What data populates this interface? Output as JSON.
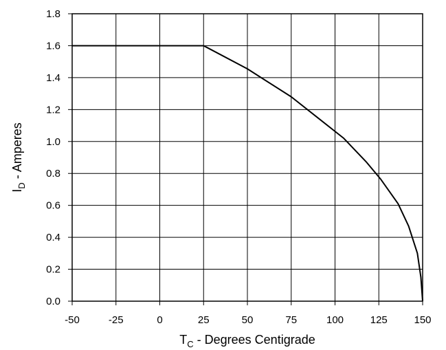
{
  "chart_data": {
    "type": "line",
    "title": "",
    "xlabel": {
      "main": "T",
      "sub": "C",
      "rest": " - Degrees Centigrade"
    },
    "ylabel": {
      "main": "I",
      "sub": "D",
      "rest": " - Amperes"
    },
    "xlim": [
      -50,
      150
    ],
    "ylim": [
      0.0,
      1.8
    ],
    "xticks": [
      -50,
      -25,
      0,
      25,
      50,
      75,
      100,
      125,
      150
    ],
    "xtick_labels": [
      "-50",
      "-25",
      "0",
      "25",
      "50",
      "75",
      "100",
      "125",
      "150"
    ],
    "yticks": [
      0.0,
      0.2,
      0.4,
      0.6,
      0.8,
      1.0,
      1.2,
      1.4,
      1.6,
      1.8
    ],
    "ytick_labels": [
      "0.0",
      "0.2",
      "0.4",
      "0.6",
      "0.8",
      "1.0",
      "1.2",
      "1.4",
      "1.6",
      "1.8"
    ],
    "grid": true,
    "legend": "none",
    "series": [
      {
        "color": "#000000",
        "x": [
          -50,
          25,
          50,
          75,
          90,
          105,
          118,
          126,
          136,
          142,
          147,
          149,
          150
        ],
        "y": [
          1.6,
          1.6,
          1.455,
          1.28,
          1.15,
          1.02,
          0.87,
          0.765,
          0.61,
          0.47,
          0.3,
          0.15,
          0.0
        ]
      }
    ]
  }
}
